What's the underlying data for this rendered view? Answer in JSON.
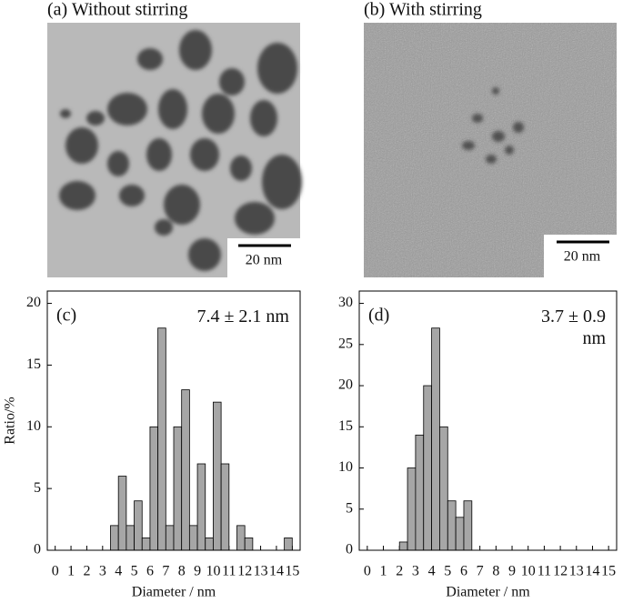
{
  "panels": [
    {
      "title": "(a) Without stirring",
      "scale_bar": "20 nm"
    },
    {
      "title": "(b) With stirring",
      "scale_bar": "20 nm"
    }
  ],
  "chart_data": [
    {
      "type": "histogram",
      "panel_label": "(c)",
      "annotation": "7.4 ± 2.1 nm",
      "x_label": "Diameter / nm",
      "y_label": "Ratio/%",
      "color": "#a6a6a6",
      "bins": [
        0,
        0.5,
        1,
        1.5,
        2,
        2.5,
        3,
        3.5,
        4,
        4.5,
        5,
        5.5,
        6,
        6.5,
        7,
        7.5,
        8,
        8.5,
        9,
        9.5,
        10,
        10.5,
        11,
        11.5,
        12,
        12.5,
        13,
        13.5,
        14,
        14.5,
        15
      ],
      "values": [
        0,
        0,
        0,
        0,
        0,
        0,
        0,
        2,
        6,
        2,
        4,
        1,
        10,
        18,
        2,
        10,
        13,
        2,
        7,
        1,
        12,
        7,
        0,
        2,
        1,
        0,
        0,
        0,
        0,
        1
      ],
      "xlim": [
        -0.5,
        15.5
      ],
      "xticks": [
        0,
        1,
        2,
        3,
        4,
        5,
        6,
        7,
        8,
        9,
        10,
        11,
        12,
        13,
        14,
        15
      ],
      "ylim": [
        0,
        21
      ],
      "yticks": [
        0,
        5,
        10,
        15,
        20
      ]
    },
    {
      "type": "histogram",
      "panel_label": "(d)",
      "annotation": "3.7 ± 0.9 nm",
      "x_label": "Diameter / nm",
      "color": "#a6a6a6",
      "bins": [
        0,
        0.5,
        1,
        1.5,
        2,
        2.5,
        3,
        3.5,
        4,
        4.5,
        5,
        5.5,
        6,
        6.5,
        7,
        7.5,
        8,
        8.5,
        9,
        9.5,
        10,
        10.5,
        11,
        11.5,
        12,
        12.5,
        13,
        13.5,
        14,
        14.5,
        15
      ],
      "values": [
        0,
        0,
        0,
        0,
        1,
        10,
        14,
        20,
        27,
        15,
        6,
        4,
        6,
        0,
        0,
        0,
        0,
        0,
        0,
        0,
        0,
        0,
        0,
        0,
        0,
        0,
        0,
        0,
        0,
        0
      ],
      "xlim": [
        -0.5,
        15.5
      ],
      "xticks": [
        0,
        1,
        2,
        3,
        4,
        5,
        6,
        7,
        8,
        9,
        10,
        11,
        12,
        13,
        14,
        15
      ],
      "ylim": [
        0,
        31.5
      ],
      "yticks": [
        0,
        5,
        10,
        15,
        20,
        25,
        30
      ]
    }
  ]
}
